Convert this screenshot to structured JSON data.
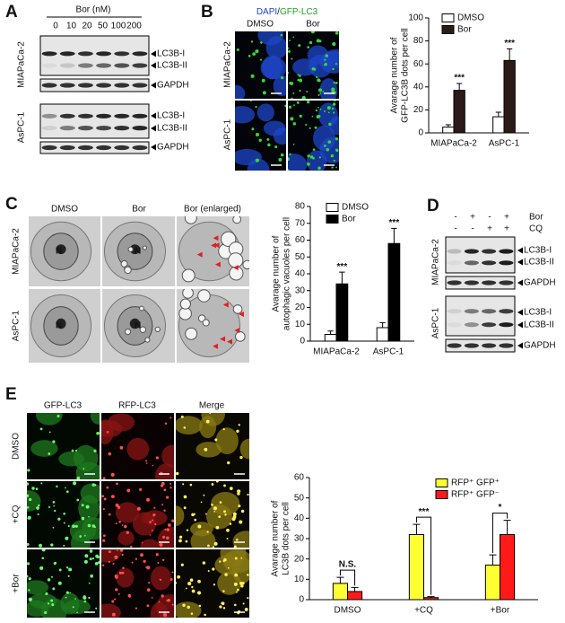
{
  "figure": {
    "A": {
      "label": "A",
      "treatment": "Bor (nM)",
      "doses": [
        "0",
        "10",
        "20",
        "50",
        "100",
        "200"
      ],
      "cell_lines": [
        "MIAPaCa-2",
        "AsPC-1"
      ],
      "bands": [
        "LC3B-I",
        "LC3B-II",
        "GAPDH"
      ]
    },
    "B": {
      "label": "B",
      "stain_dapi": "DAPI",
      "stain_sep": "/",
      "stain_gfp": "GFP-LC3",
      "columns": [
        "DMSO",
        "Bor"
      ],
      "rows": [
        "MIAPaCa-2",
        "AsPC-1"
      ]
    },
    "C": {
      "label": "C",
      "columns": [
        "DMSO",
        "Bor",
        "Bor (enlarged)"
      ],
      "rows": [
        "MIAPaCa-2",
        "AsPC-1"
      ],
      "nucleus": "N"
    },
    "D": {
      "label": "D",
      "treatments": [
        "Bor",
        "CQ"
      ],
      "bor_signs": [
        "-",
        "+",
        "-",
        "+"
      ],
      "cq_signs": [
        "-",
        "-",
        "+",
        "+"
      ],
      "rows": [
        "MIAPaCa-2",
        "AsPC-1"
      ],
      "bands": [
        "LC3B-I",
        "LC3B-II",
        "GAPDH"
      ]
    },
    "E": {
      "label": "E",
      "columns": [
        "GFP-LC3",
        "RFP-LC3",
        "Merge"
      ],
      "rows": [
        "DMSO",
        "+CQ",
        "+Bor"
      ]
    }
  },
  "chart_data": [
    {
      "type": "bar",
      "ylabel": [
        "Avarage number of",
        "GFP-LC3B dots per cell"
      ],
      "categories": [
        "MIAPaCa-2",
        "AsPC-1"
      ],
      "series": [
        {
          "name": "DMSO",
          "color": "#ffffff",
          "values": [
            5,
            14
          ],
          "errors": [
            2,
            4
          ]
        },
        {
          "name": "Bor",
          "color": "#2b1a17",
          "values": [
            37,
            63
          ],
          "errors": [
            6,
            10
          ],
          "significance": [
            "***",
            "***"
          ]
        }
      ],
      "ylim": [
        0,
        100
      ],
      "yticks": [
        0,
        20,
        40,
        60,
        80,
        100
      ],
      "legend": "upper left"
    },
    {
      "type": "bar",
      "ylabel": [
        "Avarage number of",
        "autophagic vacuoles per cell"
      ],
      "categories": [
        "MIAPaCa-2",
        "AsPC-1"
      ],
      "series": [
        {
          "name": "DMSO",
          "color": "#ffffff",
          "values": [
            4,
            8
          ],
          "errors": [
            2,
            3
          ]
        },
        {
          "name": "Bor",
          "color": "#000000",
          "values": [
            34,
            58
          ],
          "errors": [
            7,
            9
          ],
          "significance": [
            "***",
            "***"
          ]
        }
      ],
      "ylim": [
        0,
        80
      ],
      "yticks": [
        0,
        10,
        20,
        30,
        40,
        50,
        60,
        70,
        80
      ],
      "legend": "upper left"
    },
    {
      "type": "bar",
      "ylabel": [
        "Avarage number of",
        "LC3B dots per cell"
      ],
      "categories": [
        "DMSO",
        "+CQ",
        "+Bor"
      ],
      "series": [
        {
          "name": "RFP⁺ GFP⁺",
          "color": "#ffff33",
          "values": [
            8,
            32,
            17
          ],
          "errors": [
            3,
            5,
            5
          ]
        },
        {
          "name": "RFP⁺ GFP⁻",
          "color": "#ff1a1a",
          "values": [
            4,
            1,
            32
          ],
          "errors": [
            2,
            0.5,
            7
          ]
        }
      ],
      "comparisons": [
        "N.S.",
        "***",
        "*"
      ],
      "ylim": [
        0,
        60
      ],
      "yticks": [
        0,
        10,
        20,
        30,
        40,
        50,
        60
      ],
      "legend": "upper right"
    }
  ]
}
